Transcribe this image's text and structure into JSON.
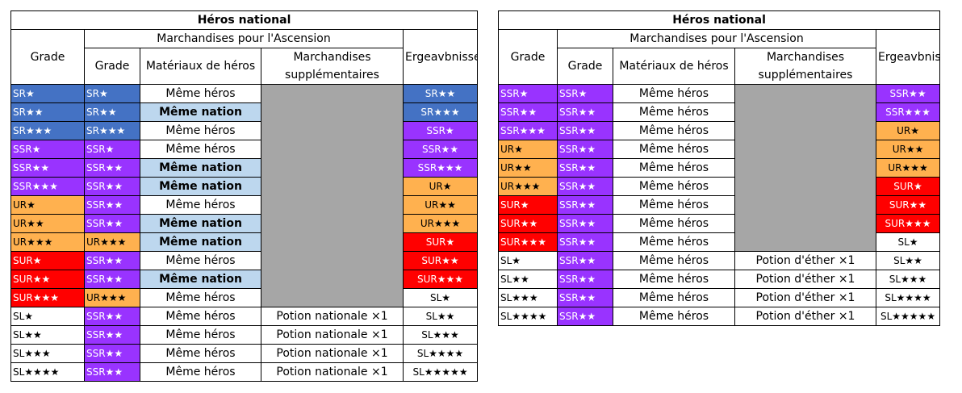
{
  "left_table": {
    "title": "Héros national",
    "headers": {
      "grade": "Grade",
      "goods": "Marchandises pour l'Ascension",
      "result": "Ergeavbnisse",
      "sub_grade": "Grade",
      "material": "Matériaux de héros",
      "extra_line1": "Marchandises",
      "extra_line2": "supplémentaires"
    },
    "rows": [
      {
        "grade": "SR★",
        "g": "SR",
        "rg": "SR★",
        "rgc": "SR",
        "mat": "Même héros",
        "nat": false,
        "extra": null,
        "res": "SR★★",
        "rc": "SR"
      },
      {
        "grade": "SR★★",
        "g": "SR",
        "rg": "SR★★",
        "rgc": "SR",
        "mat": "Même nation",
        "nat": true,
        "extra": null,
        "res": "SR★★★",
        "rc": "SR"
      },
      {
        "grade": "SR★★★",
        "g": "SR",
        "rg": "SR★★★",
        "rgc": "SR",
        "mat": "Même héros",
        "nat": false,
        "extra": null,
        "res": "SSR★",
        "rc": "SSR"
      },
      {
        "grade": "SSR★",
        "g": "SSR",
        "rg": "SSR★",
        "rgc": "SSR",
        "mat": "Même héros",
        "nat": false,
        "extra": null,
        "res": "SSR★★",
        "rc": "SSR"
      },
      {
        "grade": "SSR★★",
        "g": "SSR",
        "rg": "SSR★★",
        "rgc": "SSR",
        "mat": "Même nation",
        "nat": true,
        "extra": null,
        "res": "SSR★★★",
        "rc": "SSR"
      },
      {
        "grade": "SSR★★★",
        "g": "SSR",
        "rg": "SSR★★",
        "rgc": "SSR",
        "mat": "Même nation",
        "nat": true,
        "extra": null,
        "res": "UR★",
        "rc": "UR"
      },
      {
        "grade": "UR★",
        "g": "UR",
        "rg": "SSR★★",
        "rgc": "SSR",
        "mat": "Même héros",
        "nat": false,
        "extra": null,
        "res": "UR★★",
        "rc": "UR"
      },
      {
        "grade": "UR★★",
        "g": "UR",
        "rg": "SSR★★",
        "rgc": "SSR",
        "mat": "Même nation",
        "nat": true,
        "extra": null,
        "res": "UR★★★",
        "rc": "UR"
      },
      {
        "grade": "UR★★★",
        "g": "UR",
        "rg": "UR★★★",
        "rgc": "UR",
        "mat": "Même nation",
        "nat": true,
        "extra": null,
        "res": "SUR★",
        "rc": "SUR"
      },
      {
        "grade": "SUR★",
        "g": "SUR",
        "rg": "SSR★★",
        "rgc": "SSR",
        "mat": "Même héros",
        "nat": false,
        "extra": null,
        "res": "SUR★★",
        "rc": "SUR"
      },
      {
        "grade": "SUR★★",
        "g": "SUR",
        "rg": "SSR★★",
        "rgc": "SSR",
        "mat": "Même nation",
        "nat": true,
        "extra": null,
        "res": "SUR★★★",
        "rc": "SUR"
      },
      {
        "grade": "SUR★★★",
        "g": "SUR",
        "rg": "UR★★★",
        "rgc": "UR",
        "mat": "Même héros",
        "nat": false,
        "extra": null,
        "res": "SL★",
        "rc": "SL"
      },
      {
        "grade": "SL★",
        "g": "SL",
        "rg": "SSR★★",
        "rgc": "SSR",
        "mat": "Même héros",
        "nat": false,
        "extra": "Potion nationale ×1",
        "res": "SL★★",
        "rc": "SL"
      },
      {
        "grade": "SL★★",
        "g": "SL",
        "rg": "SSR★★",
        "rgc": "SSR",
        "mat": "Même héros",
        "nat": false,
        "extra": "Potion nationale ×1",
        "res": "SL★★★",
        "rc": "SL"
      },
      {
        "grade": "SL★★★",
        "g": "SL",
        "rg": "SSR★★",
        "rgc": "SSR",
        "mat": "Même héros",
        "nat": false,
        "extra": "Potion nationale ×1",
        "res": "SL★★★★",
        "rc": "SL"
      },
      {
        "grade": "SL★★★★",
        "g": "SL",
        "rg": "SSR★★",
        "rgc": "SSR",
        "mat": "Même héros",
        "nat": false,
        "extra": "Potion nationale ×1",
        "res": "SL★★★★★",
        "rc": "SL"
      }
    ]
  },
  "right_table": {
    "title": "Héros national",
    "headers": {
      "grade": "Grade",
      "goods": "Marchandises pour l'Ascension",
      "result": "Ergeavbnisse",
      "sub_grade": "Grade",
      "material": "Matériaux de héros",
      "extra_line1": "Marchandises",
      "extra_line2": "supplémentaires"
    },
    "rows": [
      {
        "grade": "SSR★",
        "g": "SSR",
        "rg": "SSR★",
        "rgc": "SSR",
        "mat": "Même héros",
        "nat": false,
        "extra": null,
        "res": "SSR★★",
        "rc": "SSR"
      },
      {
        "grade": "SSR★★",
        "g": "SSR",
        "rg": "SSR★★",
        "rgc": "SSR",
        "mat": "Même héros",
        "nat": false,
        "extra": null,
        "res": "SSR★★★",
        "rc": "SSR"
      },
      {
        "grade": "SSR★★★",
        "g": "SSR",
        "rg": "SSR★★",
        "rgc": "SSR",
        "mat": "Même héros",
        "nat": false,
        "extra": null,
        "res": "UR★",
        "rc": "UR"
      },
      {
        "grade": "UR★",
        "g": "UR",
        "rg": "SSR★★",
        "rgc": "SSR",
        "mat": "Même héros",
        "nat": false,
        "extra": null,
        "res": "UR★★",
        "rc": "UR"
      },
      {
        "grade": "UR★★",
        "g": "UR",
        "rg": "SSR★★",
        "rgc": "SSR",
        "mat": "Même héros",
        "nat": false,
        "extra": null,
        "res": "UR★★★",
        "rc": "UR"
      },
      {
        "grade": "UR★★★",
        "g": "UR",
        "rg": "SSR★★",
        "rgc": "SSR",
        "mat": "Même héros",
        "nat": false,
        "extra": null,
        "res": "SUR★",
        "rc": "SUR"
      },
      {
        "grade": "SUR★",
        "g": "SUR",
        "rg": "SSR★★",
        "rgc": "SSR",
        "mat": "Même héros",
        "nat": false,
        "extra": null,
        "res": "SUR★★",
        "rc": "SUR"
      },
      {
        "grade": "SUR★★",
        "g": "SUR",
        "rg": "SSR★★",
        "rgc": "SSR",
        "mat": "Même héros",
        "nat": false,
        "extra": null,
        "res": "SUR★★★",
        "rc": "SUR"
      },
      {
        "grade": "SUR★★★",
        "g": "SUR",
        "rg": "SSR★★",
        "rgc": "SSR",
        "mat": "Même héros",
        "nat": false,
        "extra": null,
        "res": "SL★",
        "rc": "SL"
      },
      {
        "grade": "SL★",
        "g": "SL",
        "rg": "SSR★★",
        "rgc": "SSR",
        "mat": "Même héros",
        "nat": false,
        "extra": "Potion d'éther ×1",
        "res": "SL★★",
        "rc": "SL"
      },
      {
        "grade": "SL★★",
        "g": "SL",
        "rg": "SSR★★",
        "rgc": "SSR",
        "mat": "Même héros",
        "nat": false,
        "extra": "Potion d'éther ×1",
        "res": "SL★★★",
        "rc": "SL"
      },
      {
        "grade": "SL★★★",
        "g": "SL",
        "rg": "SSR★★",
        "rgc": "SSR",
        "mat": "Même héros",
        "nat": false,
        "extra": "Potion d'éther ×1",
        "res": "SL★★★★",
        "rc": "SL"
      },
      {
        "grade": "SL★★★★",
        "g": "SL",
        "rg": "SSR★★",
        "rgc": "SSR",
        "mat": "Même héros",
        "nat": false,
        "extra": "Potion d'éther ×1",
        "res": "SL★★★★★",
        "rc": "SL"
      }
    ]
  },
  "colors": {
    "SR": "#4472c4",
    "SSR": "#9933ff",
    "UR": "#ffb14f",
    "SUR": "#ff0000",
    "SL": "#ffffff",
    "nation_highlight": "#bdd7ee",
    "gray_block": "#a6a6a6"
  }
}
